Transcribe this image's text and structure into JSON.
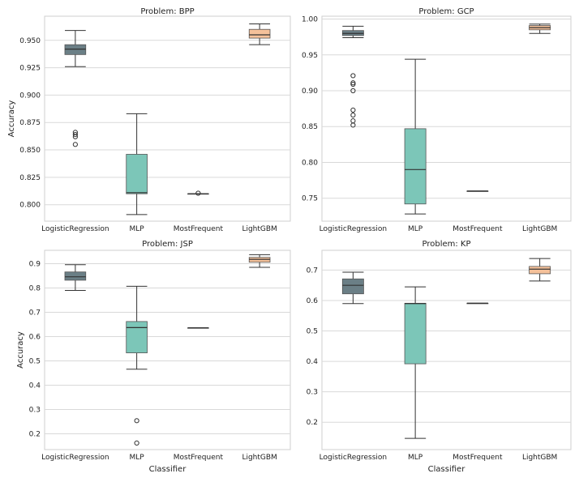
{
  "colors": {
    "LogisticRegression": "#6b7f86",
    "MLP": "#7cc6b8",
    "MostFrequent": "#b7b7b7",
    "LightGBM": "#f5c19a",
    "grid": "#d9d9d9",
    "frame": "#cfcfcf",
    "line": "#333333"
  },
  "chart_data": [
    {
      "type": "box",
      "title": "Problem: BPP",
      "xlabel": "",
      "ylabel": "Accuracy",
      "ylim": [
        0.785,
        0.972
      ],
      "yticks": [
        0.8,
        0.825,
        0.85,
        0.875,
        0.9,
        0.925,
        0.95
      ],
      "ytick_labels": [
        "0.800",
        "0.825",
        "0.850",
        "0.875",
        "0.900",
        "0.925",
        "0.950"
      ],
      "categories": [
        "LogisticRegression",
        "MLP",
        "MostFrequent",
        "LightGBM"
      ],
      "boxes": [
        {
          "name": "LogisticRegression",
          "whislo": 0.926,
          "q1": 0.937,
          "med": 0.942,
          "q3": 0.946,
          "whishi": 0.959,
          "fliers": [
            0.855,
            0.862,
            0.864,
            0.866
          ]
        },
        {
          "name": "MLP",
          "whislo": 0.791,
          "q1": 0.81,
          "med": 0.811,
          "q3": 0.846,
          "whishi": 0.883,
          "fliers": []
        },
        {
          "name": "MostFrequent",
          "whislo": 0.81,
          "q1": 0.81,
          "med": 0.81,
          "q3": 0.81,
          "whishi": 0.81,
          "fliers": [
            0.8105
          ]
        },
        {
          "name": "LightGBM",
          "whislo": 0.946,
          "q1": 0.952,
          "med": 0.955,
          "q3": 0.96,
          "whishi": 0.965,
          "fliers": []
        }
      ]
    },
    {
      "type": "box",
      "title": "Problem: GCP",
      "xlabel": "",
      "ylabel": "",
      "ylim": [
        0.718,
        1.004
      ],
      "yticks": [
        0.75,
        0.8,
        0.85,
        0.9,
        0.95,
        1.0
      ],
      "ytick_labels": [
        "0.75",
        "0.80",
        "0.85",
        "0.90",
        "0.95",
        "1.00"
      ],
      "categories": [
        "LogisticRegression",
        "MLP",
        "MostFrequent",
        "LightGBM"
      ],
      "boxes": [
        {
          "name": "LogisticRegression",
          "whislo": 0.974,
          "q1": 0.977,
          "med": 0.98,
          "q3": 0.984,
          "whishi": 0.99,
          "fliers": [
            0.852,
            0.858,
            0.866,
            0.873,
            0.9,
            0.909,
            0.911,
            0.921
          ]
        },
        {
          "name": "MLP",
          "whislo": 0.728,
          "q1": 0.742,
          "med": 0.79,
          "q3": 0.847,
          "whishi": 0.944,
          "fliers": []
        },
        {
          "name": "MostFrequent",
          "whislo": 0.76,
          "q1": 0.76,
          "med": 0.76,
          "q3": 0.76,
          "whishi": 0.76,
          "fliers": []
        },
        {
          "name": "LightGBM",
          "whislo": 0.98,
          "q1": 0.985,
          "med": 0.988,
          "q3": 0.991,
          "whishi": 0.993,
          "fliers": []
        }
      ]
    },
    {
      "type": "box",
      "title": "Problem: JSP",
      "xlabel": "Classifier",
      "ylabel": "Accuracy",
      "ylim": [
        0.135,
        0.955
      ],
      "yticks": [
        0.2,
        0.3,
        0.4,
        0.5,
        0.6,
        0.7,
        0.8,
        0.9
      ],
      "ytick_labels": [
        "0.2",
        "0.3",
        "0.4",
        "0.5",
        "0.6",
        "0.7",
        "0.8",
        "0.9"
      ],
      "categories": [
        "LogisticRegression",
        "MLP",
        "MostFrequent",
        "LightGBM"
      ],
      "boxes": [
        {
          "name": "LogisticRegression",
          "whislo": 0.79,
          "q1": 0.832,
          "med": 0.846,
          "q3": 0.866,
          "whishi": 0.896,
          "fliers": []
        },
        {
          "name": "MLP",
          "whislo": 0.466,
          "q1": 0.533,
          "med": 0.637,
          "q3": 0.662,
          "whishi": 0.807,
          "fliers": [
            0.254,
            0.162
          ]
        },
        {
          "name": "MostFrequent",
          "whislo": 0.636,
          "q1": 0.636,
          "med": 0.636,
          "q3": 0.636,
          "whishi": 0.636,
          "fliers": []
        },
        {
          "name": "LightGBM",
          "whislo": 0.885,
          "q1": 0.906,
          "med": 0.918,
          "q3": 0.926,
          "whishi": 0.937,
          "fliers": []
        }
      ]
    },
    {
      "type": "box",
      "title": "Problem: KP",
      "xlabel": "Classifier",
      "ylabel": "",
      "ylim": [
        0.11,
        0.765
      ],
      "yticks": [
        0.2,
        0.3,
        0.4,
        0.5,
        0.6,
        0.7
      ],
      "ytick_labels": [
        "0.2",
        "0.3",
        "0.4",
        "0.5",
        "0.6",
        "0.7"
      ],
      "categories": [
        "LogisticRegression",
        "MLP",
        "MostFrequent",
        "LightGBM"
      ],
      "boxes": [
        {
          "name": "LogisticRegression",
          "whislo": 0.59,
          "q1": 0.622,
          "med": 0.65,
          "q3": 0.671,
          "whishi": 0.693,
          "fliers": []
        },
        {
          "name": "MLP",
          "whislo": 0.147,
          "q1": 0.392,
          "med": 0.59,
          "q3": 0.591,
          "whishi": 0.645,
          "fliers": []
        },
        {
          "name": "MostFrequent",
          "whislo": 0.591,
          "q1": 0.591,
          "med": 0.591,
          "q3": 0.591,
          "whishi": 0.591,
          "fliers": []
        },
        {
          "name": "LightGBM",
          "whislo": 0.664,
          "q1": 0.688,
          "med": 0.703,
          "q3": 0.712,
          "whishi": 0.738,
          "fliers": []
        }
      ]
    }
  ]
}
